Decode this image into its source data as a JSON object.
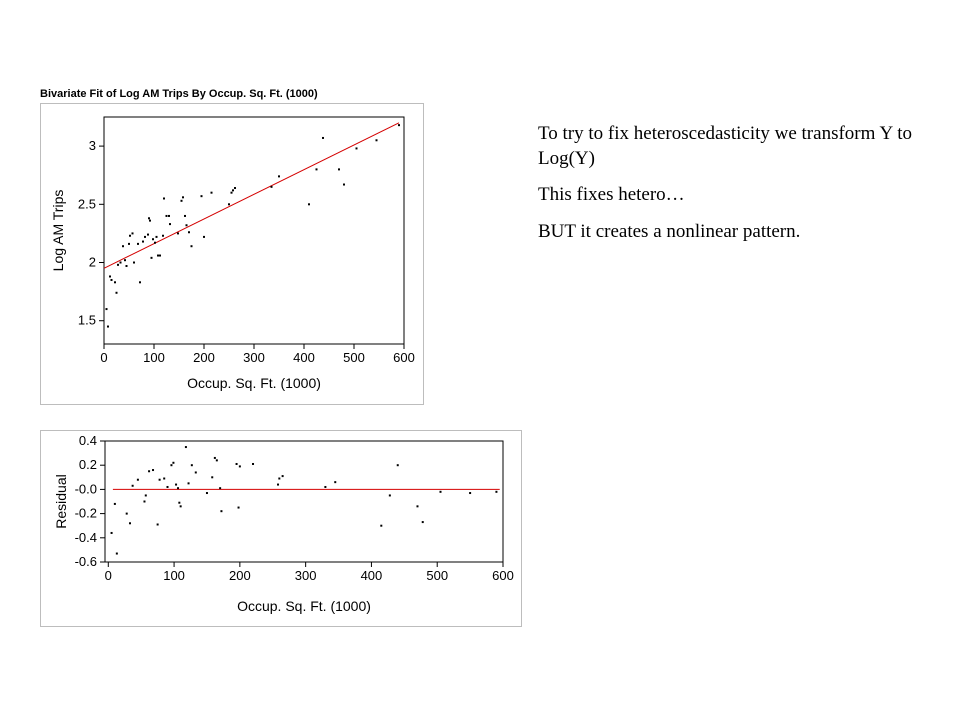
{
  "slide": {
    "notes": [
      "To try to fix heteroscedasticity we transform Y to Log(Y)",
      "This fixes hetero…",
      "BUT it creates a nonlinear pattern."
    ]
  },
  "chart_data": [
    {
      "type": "scatter",
      "title": "Bivariate Fit of Log AM Trips By Occup. Sq. Ft. (1000)",
      "xlabel": "Occup. Sq. Ft. (1000)",
      "ylabel": "Log AM Trips",
      "xlim": [
        0,
        600
      ],
      "ylim": [
        1.3,
        3.25
      ],
      "xticks": [
        "0",
        "100",
        "200",
        "300",
        "400",
        "500",
        "600"
      ],
      "yticks": [
        "1.5",
        "2",
        "2.5",
        "3"
      ],
      "fit_line": {
        "x": [
          0,
          590
        ],
        "y": [
          1.95,
          3.2
        ],
        "color": "#d40000"
      },
      "point_color": "#000000",
      "grid": false,
      "points": [
        [
          5,
          1.6
        ],
        [
          8,
          1.45
        ],
        [
          12,
          1.88
        ],
        [
          15,
          1.85
        ],
        [
          22,
          1.83
        ],
        [
          25,
          1.74
        ],
        [
          28,
          1.98
        ],
        [
          33,
          2.0
        ],
        [
          38,
          2.14
        ],
        [
          42,
          2.02
        ],
        [
          45,
          1.97
        ],
        [
          50,
          2.16
        ],
        [
          52,
          2.23
        ],
        [
          57,
          2.25
        ],
        [
          60,
          2.0
        ],
        [
          68,
          2.16
        ],
        [
          72,
          1.83
        ],
        [
          78,
          2.18
        ],
        [
          82,
          2.22
        ],
        [
          88,
          2.24
        ],
        [
          90,
          2.38
        ],
        [
          92,
          2.36
        ],
        [
          95,
          2.04
        ],
        [
          98,
          2.2
        ],
        [
          102,
          2.17
        ],
        [
          105,
          2.22
        ],
        [
          108,
          2.06
        ],
        [
          112,
          2.06
        ],
        [
          118,
          2.23
        ],
        [
          120,
          2.55
        ],
        [
          125,
          2.4
        ],
        [
          130,
          2.4
        ],
        [
          132,
          2.33
        ],
        [
          148,
          2.25
        ],
        [
          155,
          2.53
        ],
        [
          158,
          2.56
        ],
        [
          162,
          2.4
        ],
        [
          165,
          2.32
        ],
        [
          170,
          2.26
        ],
        [
          175,
          2.14
        ],
        [
          195,
          2.57
        ],
        [
          200,
          2.22
        ],
        [
          215,
          2.6
        ],
        [
          250,
          2.5
        ],
        [
          255,
          2.6
        ],
        [
          258,
          2.62
        ],
        [
          262,
          2.64
        ],
        [
          335,
          2.65
        ],
        [
          350,
          2.74
        ],
        [
          410,
          2.5
        ],
        [
          425,
          2.8
        ],
        [
          438,
          3.07
        ],
        [
          470,
          2.8
        ],
        [
          480,
          2.67
        ],
        [
          505,
          2.98
        ],
        [
          545,
          3.05
        ],
        [
          590,
          3.18
        ]
      ]
    },
    {
      "type": "scatter",
      "title": "",
      "xlabel": "Occup. Sq. Ft. (1000)",
      "ylabel": "Residual",
      "xlim": [
        -5,
        600
      ],
      "ylim": [
        -0.6,
        0.4
      ],
      "xticks": [
        "0",
        "100",
        "200",
        "300",
        "400",
        "500",
        "600"
      ],
      "yticks": [
        "0.4",
        "0.2",
        "-0.0",
        "-0.2",
        "-0.4",
        "-0.6"
      ],
      "zero_line": {
        "y": 0,
        "color": "#d40000"
      },
      "point_color": "#000000",
      "grid": false,
      "points": [
        [
          5,
          -0.36
        ],
        [
          10,
          -0.12
        ],
        [
          13,
          -0.53
        ],
        [
          28,
          -0.2
        ],
        [
          33,
          -0.28
        ],
        [
          37,
          0.03
        ],
        [
          45,
          0.08
        ],
        [
          55,
          -0.1
        ],
        [
          57,
          -0.05
        ],
        [
          62,
          0.15
        ],
        [
          68,
          0.16
        ],
        [
          75,
          -0.29
        ],
        [
          78,
          0.08
        ],
        [
          85,
          0.09
        ],
        [
          90,
          0.02
        ],
        [
          96,
          0.2
        ],
        [
          99,
          0.22
        ],
        [
          103,
          0.04
        ],
        [
          106,
          0.01
        ],
        [
          108,
          -0.11
        ],
        [
          110,
          -0.14
        ],
        [
          118,
          0.35
        ],
        [
          122,
          0.05
        ],
        [
          127,
          0.2
        ],
        [
          133,
          0.14
        ],
        [
          150,
          -0.03
        ],
        [
          158,
          0.1
        ],
        [
          162,
          0.26
        ],
        [
          165,
          0.24
        ],
        [
          170,
          0.01
        ],
        [
          172,
          -0.18
        ],
        [
          195,
          0.21
        ],
        [
          198,
          -0.15
        ],
        [
          200,
          0.19
        ],
        [
          220,
          0.21
        ],
        [
          258,
          0.04
        ],
        [
          260,
          0.09
        ],
        [
          265,
          0.11
        ],
        [
          330,
          0.02
        ],
        [
          345,
          0.06
        ],
        [
          415,
          -0.3
        ],
        [
          428,
          -0.05
        ],
        [
          440,
          0.2
        ],
        [
          470,
          -0.14
        ],
        [
          478,
          -0.27
        ],
        [
          505,
          -0.02
        ],
        [
          550,
          -0.03
        ],
        [
          590,
          -0.02
        ]
      ]
    }
  ]
}
